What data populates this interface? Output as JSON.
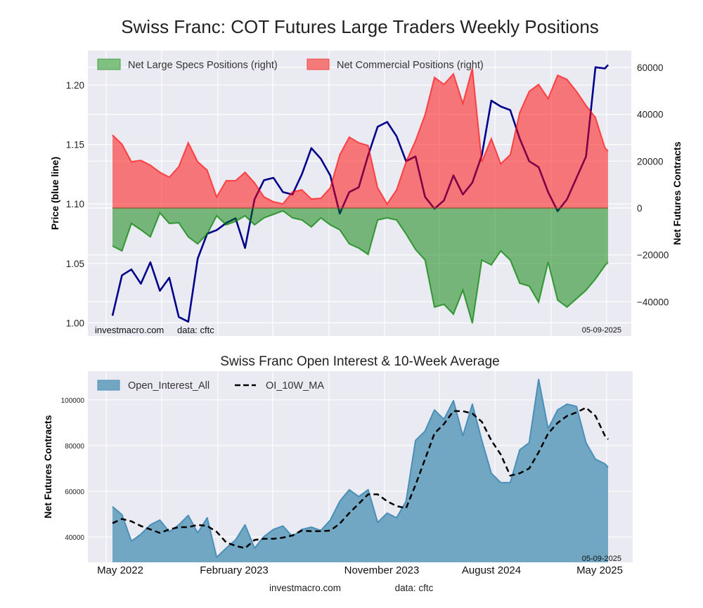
{
  "chart_data": [
    {
      "type": "area",
      "title": "Swiss Franc: COT Futures Large Traders Weekly Positions",
      "ylabel": "Price (blue line)",
      "ylabel_right": "Net Futures Contracts",
      "ylim": [
        0.989,
        1.229
      ],
      "ylim_right": [
        -54600,
        67200
      ],
      "yticks": [
        "1.00",
        "1.05",
        "1.10",
        "1.15",
        "1.20"
      ],
      "yticks_right": [
        "−40000",
        "−20000",
        "0",
        "20000",
        "40000",
        "60000"
      ],
      "grid": true,
      "legend_position": "top",
      "watermark": "investmacro.com",
      "data_source": "data: cftc",
      "date_stamp": "05-09-2025",
      "colors": {
        "price": "#00008b",
        "specs": "#008000",
        "commercial": "#ff0000",
        "background": "#eaeaf2"
      },
      "x": [
        "2022-05-03",
        "2022-05-24",
        "2022-06-14",
        "2022-07-05",
        "2022-07-26",
        "2022-08-16",
        "2022-09-06",
        "2022-09-27",
        "2022-10-18",
        "2022-11-08",
        "2022-11-29",
        "2022-12-20",
        "2023-01-10",
        "2023-01-31",
        "2023-02-21",
        "2023-03-14",
        "2023-04-04",
        "2023-04-25",
        "2023-05-16",
        "2023-06-06",
        "2023-06-27",
        "2023-07-18",
        "2023-08-08",
        "2023-08-29",
        "2023-09-19",
        "2023-10-10",
        "2023-10-31",
        "2023-11-21",
        "2023-12-12",
        "2024-01-02",
        "2024-01-23",
        "2024-02-13",
        "2024-03-05",
        "2024-03-26",
        "2024-04-16",
        "2024-05-07",
        "2024-05-28",
        "2024-06-18",
        "2024-07-09",
        "2024-07-30",
        "2024-08-20",
        "2024-09-10",
        "2024-10-01",
        "2024-10-22",
        "2024-11-12",
        "2024-12-03",
        "2024-12-24",
        "2025-01-14",
        "2025-02-04",
        "2025-02-25",
        "2025-03-18",
        "2025-04-08",
        "2025-04-29",
        "2025-05-06"
      ],
      "series": [
        {
          "name": "Net Large Specs Positions (right)",
          "axis": "right",
          "values": [
            -16200,
            -18300,
            -6600,
            -9300,
            -12300,
            -2100,
            -6600,
            -6300,
            -12300,
            -15300,
            -11100,
            -3300,
            -7200,
            -5700,
            -3300,
            -7200,
            -4200,
            -2700,
            -1200,
            -4200,
            -5100,
            -8100,
            -4200,
            -7200,
            -9300,
            -15300,
            -17100,
            -19800,
            -5100,
            -4200,
            -5100,
            -11100,
            -17700,
            -22200,
            -42300,
            -41100,
            -45300,
            -35100,
            -49200,
            -22200,
            -24300,
            -18300,
            -22200,
            -32100,
            -33300,
            -40200,
            -23100,
            -39300,
            -42300,
            -38700,
            -35100,
            -30300,
            -24600,
            -23100
          ]
        },
        {
          "name": "Net Commercial Positions (right)",
          "axis": "right",
          "values": [
            31200,
            27300,
            19800,
            20400,
            18300,
            15300,
            13200,
            17700,
            27900,
            19800,
            16200,
            4800,
            11700,
            11700,
            15300,
            10800,
            4800,
            2700,
            1800,
            6900,
            7800,
            3900,
            4200,
            8700,
            22800,
            30300,
            27900,
            26700,
            8700,
            1800,
            7800,
            19800,
            28800,
            39900,
            55800,
            52800,
            57300,
            44700,
            59700,
            19800,
            29700,
            18900,
            22800,
            40800,
            49800,
            52800,
            46800,
            56700,
            54900,
            49800,
            43800,
            38700,
            25800,
            24300
          ]
        },
        {
          "axis": "left",
          "values": [
            1.006,
            1.04,
            1.045,
            1.033,
            1.051,
            1.027,
            1.038,
            1.005,
            1.001,
            1.054,
            1.075,
            1.078,
            1.084,
            1.088,
            1.063,
            1.104,
            1.12,
            1.122,
            1.11,
            1.108,
            1.125,
            1.147,
            1.138,
            1.124,
            1.092,
            1.11,
            1.114,
            1.141,
            1.165,
            1.169,
            1.157,
            1.136,
            1.14,
            1.106,
            1.096,
            1.103,
            1.124,
            1.108,
            1.118,
            1.141,
            1.187,
            1.182,
            1.179,
            1.155,
            1.136,
            1.131,
            1.11,
            1.094,
            1.104,
            1.122,
            1.14,
            1.215,
            1.214,
            1.217
          ]
        }
      ]
    },
    {
      "type": "area",
      "title": "Swiss Franc Open Interest & 10-Week Average",
      "ylabel": "Net Futures Contracts",
      "ylim": [
        28900,
        112600
      ],
      "yticks": [
        "40000",
        "60000",
        "80000",
        "100000"
      ],
      "xticks": [
        "May 2022",
        "February 2023",
        "November 2023",
        "August 2024",
        "May 2025"
      ],
      "grid": true,
      "legend_position": "top-left",
      "date_stamp": "05-09-2025",
      "colors": {
        "open_interest": "#4a8fb8",
        "ma": "#000000"
      },
      "x": [
        "2022-05-03",
        "2022-05-24",
        "2022-06-14",
        "2022-07-05",
        "2022-07-26",
        "2022-08-16",
        "2022-09-06",
        "2022-09-27",
        "2022-10-18",
        "2022-11-08",
        "2022-11-29",
        "2022-12-20",
        "2023-01-10",
        "2023-01-31",
        "2023-02-21",
        "2023-03-14",
        "2023-04-04",
        "2023-04-25",
        "2023-05-16",
        "2023-06-06",
        "2023-06-27",
        "2023-07-18",
        "2023-08-08",
        "2023-08-29",
        "2023-09-19",
        "2023-10-10",
        "2023-10-31",
        "2023-11-21",
        "2023-12-12",
        "2024-01-02",
        "2024-01-23",
        "2024-02-13",
        "2024-03-05",
        "2024-03-26",
        "2024-04-16",
        "2024-05-07",
        "2024-05-28",
        "2024-06-18",
        "2024-07-09",
        "2024-07-30",
        "2024-08-20",
        "2024-09-10",
        "2024-10-01",
        "2024-10-22",
        "2024-11-12",
        "2024-12-03",
        "2024-12-24",
        "2025-01-14",
        "2025-02-04",
        "2025-02-25",
        "2025-03-18",
        "2025-04-08",
        "2025-04-29",
        "2025-05-06"
      ],
      "series": [
        {
          "name": "Open_Interest_All",
          "values": [
            53300,
            49750,
            38150,
            41200,
            45300,
            47400,
            42250,
            45300,
            49450,
            41750,
            48400,
            31100,
            35100,
            38700,
            45300,
            35100,
            40200,
            43300,
            44800,
            40200,
            43300,
            44300,
            42800,
            47400,
            55600,
            60700,
            57650,
            60700,
            46350,
            50450,
            48400,
            55600,
            82250,
            86350,
            95600,
            91500,
            99700,
            84300,
            98150,
            82250,
            67900,
            63800,
            63800,
            78150,
            81250,
            109000,
            87400,
            95600,
            98150,
            97150,
            81250,
            74050,
            72000,
            70500
          ]
        },
        {
          "name": "OI_10W_MA",
          "values": [
            46050,
            47900,
            46850,
            44800,
            43300,
            41750,
            43300,
            44300,
            44300,
            45300,
            44800,
            42250,
            37650,
            36100,
            35100,
            38700,
            39200,
            39200,
            39700,
            40700,
            42800,
            42500,
            42500,
            42800,
            45850,
            50450,
            54550,
            58650,
            58650,
            55600,
            53550,
            52550,
            62800,
            74050,
            85300,
            89450,
            95100,
            95100,
            94050,
            90450,
            82250,
            76100,
            66850,
            67900,
            69950,
            77100,
            85300,
            89950,
            93000,
            94550,
            96600,
            93000,
            84300,
            82750
          ]
        }
      ]
    }
  ],
  "footer": {
    "site": "investmacro.com",
    "source": "data: cftc"
  }
}
